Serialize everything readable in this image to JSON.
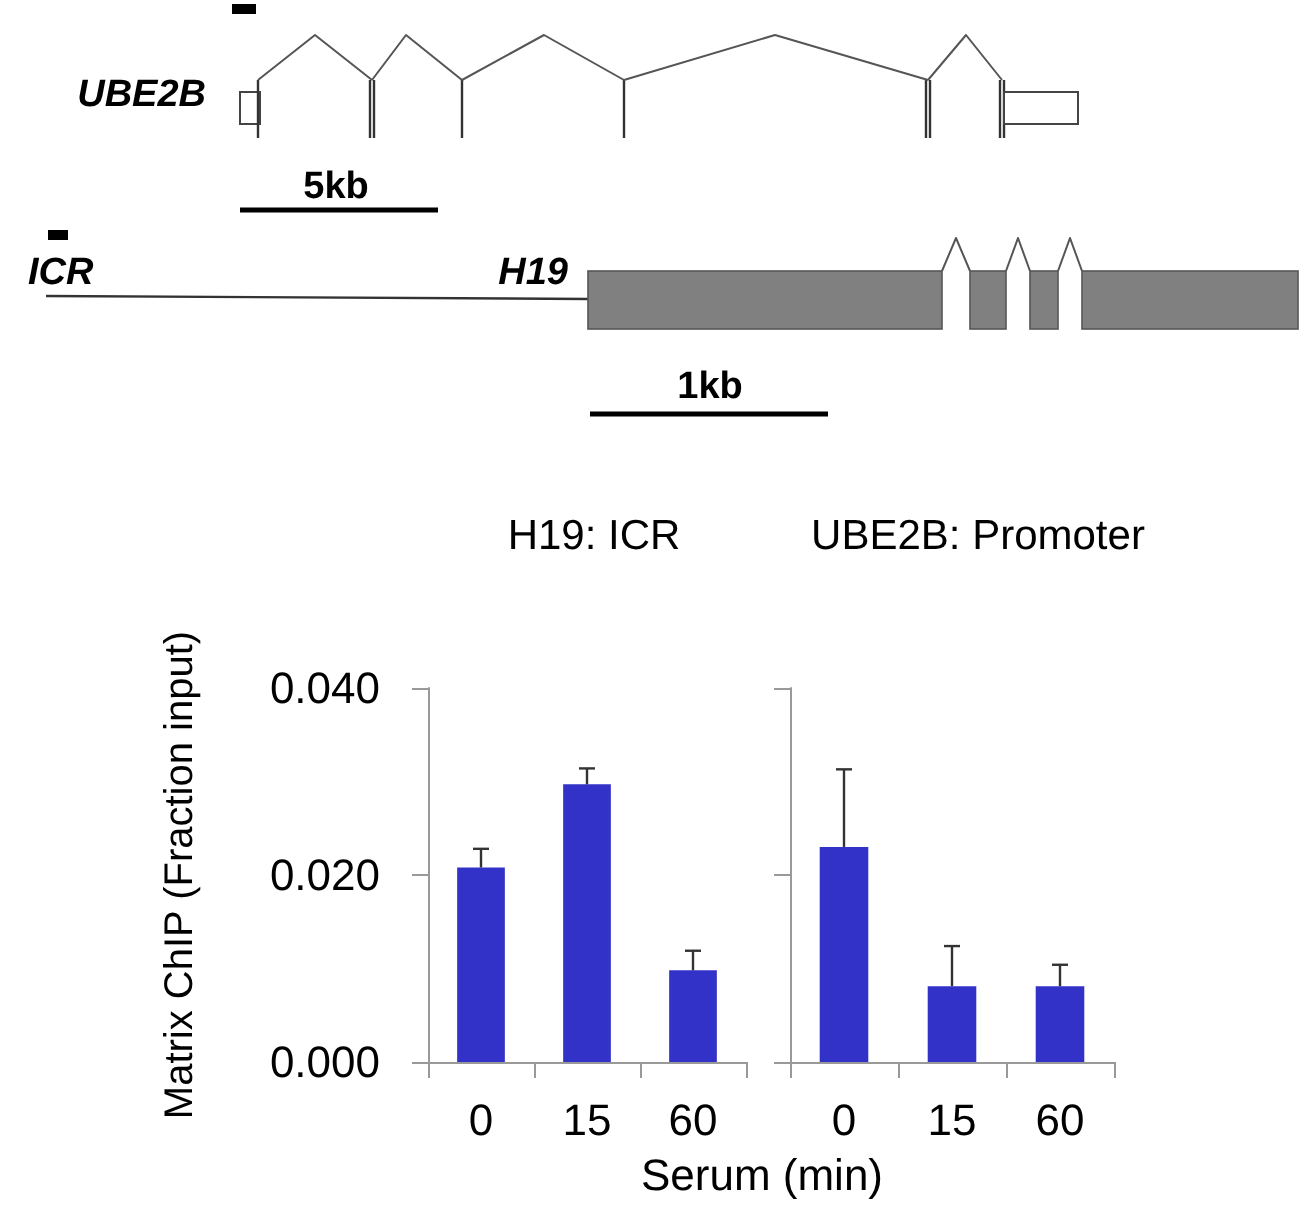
{
  "chart_data": [
    {
      "type": "other",
      "annotations": [
        "UBE2B",
        "5kb",
        "ICR",
        "H19",
        "1kb"
      ]
    },
    {
      "type": "bar",
      "title": "H19: ICR",
      "ylabel": "Matrix ChIP (Fraction input)",
      "xlabel": "Serum (min)",
      "categories": [
        "0",
        "15",
        "60"
      ],
      "values": [
        0.0208,
        0.0297,
        0.0098
      ],
      "errors": [
        [
          0.0208,
          0.0228
        ],
        [
          0.0297,
          0.0314
        ],
        [
          0.0098,
          0.0119
        ]
      ],
      "color": "#3232c8",
      "ylim": [
        0,
        0.04
      ],
      "yticks": [
        {
          "value": 0,
          "label": "0.000"
        },
        {
          "value": 0.02,
          "label": "0.020"
        },
        {
          "value": 0.04,
          "label": "0.040"
        }
      ]
    },
    {
      "type": "bar",
      "title": "UBE2B: Promoter",
      "categories": [
        "0",
        "15",
        "60"
      ],
      "values": [
        0.023,
        0.0081,
        0.0081
      ],
      "errors": [
        [
          0.023,
          0.0313
        ],
        [
          0.0081,
          0.0124
        ],
        [
          0.0081,
          0.0104
        ]
      ],
      "color": "#3232c8",
      "ylim": [
        0,
        0.04
      ],
      "yticks": [
        0,
        0.02,
        0.04
      ],
      "tick_labels": "x"
    }
  ]
}
